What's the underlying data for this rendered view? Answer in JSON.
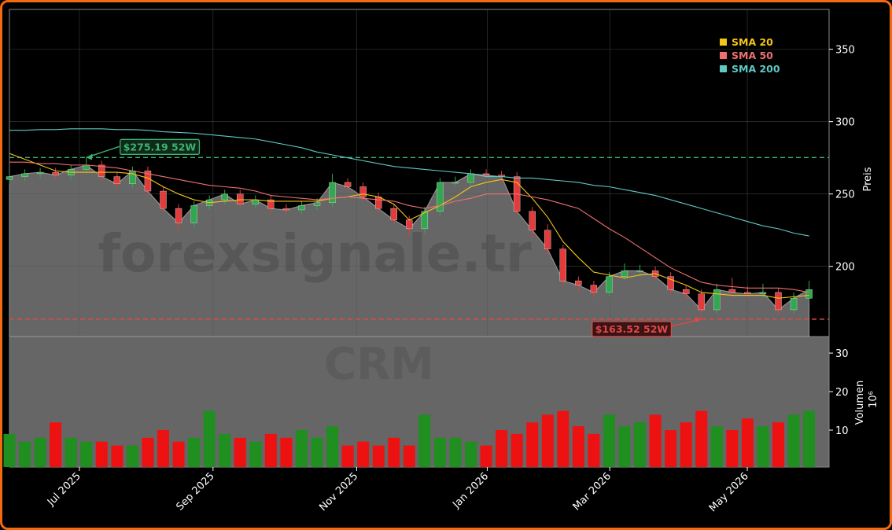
{
  "chart_data": [
    {
      "type": "candlestick",
      "ylabel": "Preis",
      "watermark": "forexsignale.tr",
      "xlim": [
        0,
        53.3
      ],
      "ylim": [
        151.5,
        377.5
      ],
      "yticks": [
        200,
        250,
        300,
        350
      ],
      "grid": true,
      "up_color": "#2fa84f",
      "down_color": "#e23b3b",
      "area_color": "#666666",
      "legend": "upper right",
      "open": [
        260,
        262,
        264,
        265,
        263,
        267,
        270,
        262,
        257,
        266,
        252,
        240,
        230,
        242,
        246,
        250,
        243,
        246,
        240,
        239,
        242,
        244,
        258,
        255,
        248,
        240,
        232,
        226,
        238,
        258,
        258,
        264,
        263,
        262,
        238,
        225,
        212,
        190,
        187,
        182,
        193,
        197,
        197,
        193,
        184,
        181,
        170,
        184,
        182,
        181,
        182,
        170,
        178
      ],
      "high": [
        265,
        267,
        268,
        268,
        270,
        275.19,
        273,
        265,
        269,
        269,
        255,
        243,
        245,
        249,
        253,
        253,
        249,
        249,
        243,
        245,
        247,
        264,
        261,
        258,
        251,
        243,
        235,
        241,
        261,
        262,
        267,
        267,
        266,
        265,
        241,
        229,
        215,
        193,
        190,
        196,
        202,
        201,
        200,
        196,
        187,
        184,
        188,
        192,
        186,
        188,
        185,
        182,
        190
      ],
      "low": [
        257,
        259,
        261,
        260,
        260,
        264,
        259,
        254,
        254,
        249,
        237,
        225,
        227,
        239,
        243,
        240,
        240,
        237,
        236,
        236,
        239,
        241,
        252,
        245,
        237,
        229,
        221,
        223,
        235,
        255,
        255,
        260,
        258,
        235,
        220,
        208,
        186,
        183,
        178,
        179,
        190,
        193,
        190,
        181,
        178,
        163.52,
        167,
        179,
        178,
        178,
        166,
        167,
        175
      ],
      "close": [
        262,
        264,
        265,
        263,
        267,
        270,
        262,
        257,
        266,
        252,
        240,
        230,
        242,
        246,
        250,
        243,
        246,
        240,
        239,
        242,
        244,
        258,
        255,
        248,
        240,
        232,
        226,
        238,
        258,
        258,
        264,
        263,
        262,
        238,
        225,
        212,
        190,
        187,
        182,
        193,
        197,
        197,
        193,
        184,
        181,
        170,
        184,
        182,
        181,
        182,
        170,
        178,
        184
      ],
      "series": [
        {
          "name": "SMA 20",
          "color": "#f5c518",
          "values": [
            278,
            274,
            270,
            266,
            265,
            265,
            265,
            265,
            264,
            261,
            255,
            250,
            246,
            244,
            245,
            246,
            246,
            245,
            245,
            245,
            245,
            247,
            248,
            250,
            248,
            243,
            232,
            237,
            242,
            248,
            255,
            258,
            260,
            258,
            247,
            234,
            217,
            206,
            196,
            194,
            192,
            194,
            195,
            191,
            187,
            182,
            181,
            180,
            180,
            180,
            178,
            179,
            180
          ]
        },
        {
          "name": "SMA 50",
          "color": "#f07070",
          "values": [
            272,
            272,
            271,
            271,
            270,
            270,
            269,
            268,
            266,
            264,
            262,
            260,
            258,
            256,
            255,
            254,
            252,
            249,
            248,
            247,
            246,
            247,
            248,
            247,
            246,
            245,
            242,
            240,
            242,
            245,
            247,
            250,
            250,
            250,
            248,
            246,
            243,
            240,
            233,
            226,
            220,
            213,
            206,
            199,
            194,
            189,
            187,
            186,
            185,
            185,
            185,
            184,
            182
          ]
        },
        {
          "name": "SMA 200",
          "color": "#5fc9c4",
          "values": [
            294,
            294,
            294.5,
            294.5,
            295,
            295,
            295,
            294.5,
            294.5,
            294,
            293,
            292.5,
            292,
            291,
            290,
            289,
            288,
            286,
            284,
            282,
            279,
            277,
            275,
            273,
            271,
            269,
            268,
            267,
            266,
            265,
            264,
            262,
            262,
            261,
            261,
            260,
            259,
            258,
            256,
            255,
            253,
            251,
            249,
            246,
            243,
            240,
            237,
            234,
            231,
            228,
            226,
            223,
            221
          ]
        }
      ],
      "reference_lines": [
        {
          "value": 275.19,
          "label": "$275.19 52W",
          "color": "#3cb371",
          "kind": "high"
        },
        {
          "value": 163.52,
          "label": "$163.52 52W",
          "color": "#e04848",
          "kind": "low"
        }
      ]
    },
    {
      "type": "bar",
      "ylabel": "Volumen",
      "ylabel_unit": "10⁶",
      "watermark": "CRM",
      "xlim": [
        0,
        53.3
      ],
      "ylim": [
        0.4,
        34.3
      ],
      "yticks": [
        10,
        20,
        30
      ],
      "xticks": [
        {
          "value": 4.55,
          "label": "Jul 2025"
        },
        {
          "value": 13.24,
          "label": "Sep 2025"
        },
        {
          "value": 22.58,
          "label": "Nov 2025"
        },
        {
          "value": 31.07,
          "label": "Jan 2026"
        },
        {
          "value": 39.04,
          "label": "Mar 2026"
        },
        {
          "value": 47.98,
          "label": "May 2026"
        }
      ],
      "up_color": "#1f8f1f",
      "down_color": "#ee1111",
      "background": "#666666",
      "values": [
        9,
        7,
        8,
        12,
        8,
        7,
        7,
        6,
        6,
        8,
        10,
        7,
        8,
        15,
        9,
        8,
        7,
        9,
        8,
        10,
        8,
        11,
        6,
        7,
        6,
        8,
        6,
        14,
        8,
        8,
        7,
        6,
        10,
        9,
        12,
        14,
        15,
        11,
        9,
        14,
        11,
        12,
        14,
        10,
        12,
        15,
        11,
        10,
        13,
        11,
        12,
        14,
        15
      ]
    }
  ]
}
